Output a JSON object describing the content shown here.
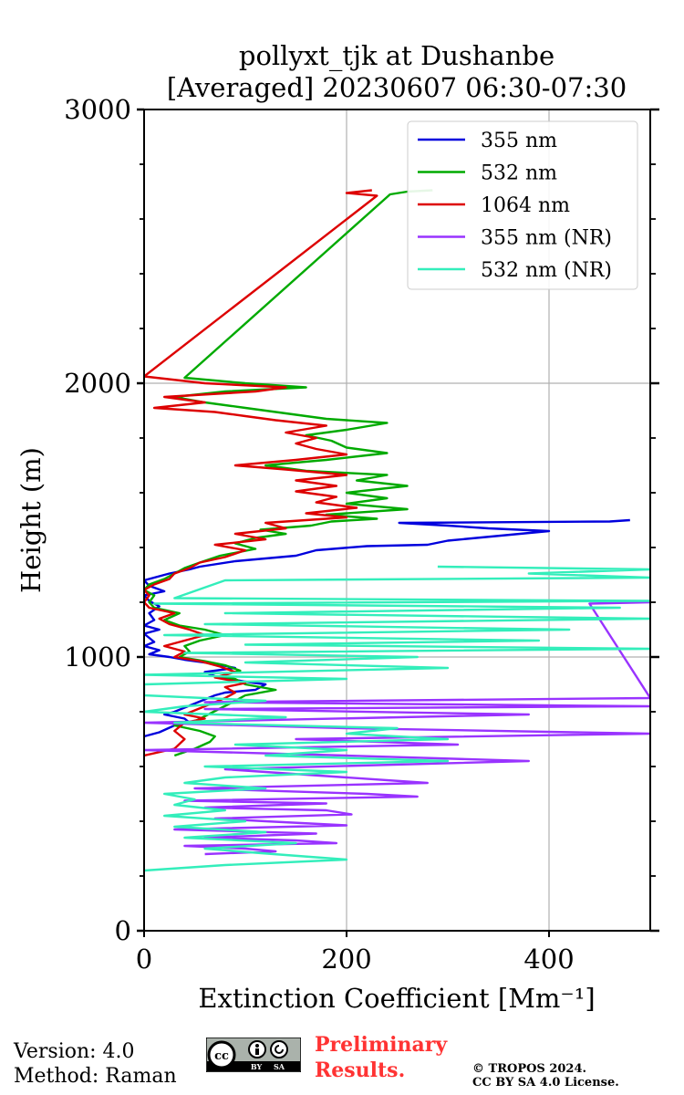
{
  "chart_data": {
    "type": "line",
    "title": [
      "pollyxt_tjk at Dushanbe",
      "[Averaged] 20230607 06:30-07:30"
    ],
    "xlabel": "Extinction Coefficient [Mm⁻¹]",
    "ylabel": "Height (m)",
    "xlim": [
      0,
      500
    ],
    "ylim": [
      0,
      3000
    ],
    "xticks": [
      0,
      200,
      400
    ],
    "yticks": [
      0,
      1000,
      2000,
      3000
    ],
    "yticks_minor_step": 200,
    "grid": true,
    "legend_position": "top-right",
    "series": [
      {
        "name": "355 nm",
        "color": "#0000dd",
        "points": [
          [
            0,
            710
          ],
          [
            15,
            725
          ],
          [
            30,
            750
          ],
          [
            45,
            760
          ],
          [
            40,
            775
          ],
          [
            20,
            790
          ],
          [
            30,
            800
          ],
          [
            70,
            860
          ],
          [
            80,
            870
          ],
          [
            110,
            880
          ],
          [
            120,
            900
          ],
          [
            100,
            910
          ],
          [
            70,
            930
          ],
          [
            60,
            945
          ],
          [
            90,
            960
          ],
          [
            70,
            975
          ],
          [
            40,
            990
          ],
          [
            25,
            1000
          ],
          [
            5,
            1010
          ],
          [
            15,
            1025
          ],
          [
            0,
            1040
          ],
          [
            10,
            1055
          ],
          [
            5,
            1070
          ],
          [
            0,
            1085
          ],
          [
            15,
            1100
          ],
          [
            0,
            1115
          ],
          [
            10,
            1135
          ],
          [
            5,
            1160
          ],
          [
            15,
            1185
          ],
          [
            5,
            1205
          ],
          [
            0,
            1225
          ],
          [
            20,
            1240
          ],
          [
            5,
            1260
          ],
          [
            0,
            1280
          ],
          [
            25,
            1305
          ],
          [
            45,
            1320
          ],
          [
            55,
            1330
          ],
          [
            90,
            1350
          ],
          [
            150,
            1370
          ],
          [
            170,
            1390
          ],
          [
            220,
            1405
          ],
          [
            280,
            1410
          ],
          [
            300,
            1425
          ],
          [
            400,
            1460
          ],
          [
            340,
            1470
          ],
          [
            300,
            1480
          ],
          [
            252,
            1490
          ],
          [
            460,
            1495
          ],
          [
            480,
            1500
          ]
        ]
      },
      {
        "name": "532 nm",
        "color": "#00aa00",
        "points": [
          [
            30,
            640
          ],
          [
            50,
            665
          ],
          [
            65,
            690
          ],
          [
            70,
            710
          ],
          [
            55,
            730
          ],
          [
            30,
            750
          ],
          [
            50,
            765
          ],
          [
            90,
            840
          ],
          [
            100,
            860
          ],
          [
            130,
            880
          ],
          [
            100,
            900
          ],
          [
            90,
            920
          ],
          [
            75,
            930
          ],
          [
            95,
            950
          ],
          [
            80,
            970
          ],
          [
            60,
            985
          ],
          [
            35,
            1000
          ],
          [
            45,
            1020
          ],
          [
            40,
            1040
          ],
          [
            55,
            1060
          ],
          [
            80,
            1080
          ],
          [
            60,
            1100
          ],
          [
            35,
            1115
          ],
          [
            20,
            1135
          ],
          [
            35,
            1160
          ],
          [
            10,
            1180
          ],
          [
            5,
            1200
          ],
          [
            10,
            1225
          ],
          [
            0,
            1245
          ],
          [
            5,
            1265
          ],
          [
            20,
            1285
          ],
          [
            30,
            1305
          ],
          [
            40,
            1325
          ],
          [
            55,
            1345
          ],
          [
            75,
            1370
          ],
          [
            110,
            1395
          ],
          [
            90,
            1415
          ],
          [
            110,
            1435
          ],
          [
            140,
            1450
          ],
          [
            115,
            1465
          ],
          [
            165,
            1480
          ],
          [
            185,
            1495
          ],
          [
            230,
            1505
          ],
          [
            180,
            1520
          ],
          [
            260,
            1540
          ],
          [
            200,
            1560
          ],
          [
            240,
            1580
          ],
          [
            200,
            1600
          ],
          [
            260,
            1625
          ],
          [
            210,
            1645
          ],
          [
            240,
            1665
          ],
          [
            160,
            1680
          ],
          [
            120,
            1700
          ],
          [
            180,
            1720
          ],
          [
            240,
            1745
          ],
          [
            200,
            1765
          ],
          [
            185,
            1790
          ],
          [
            160,
            1810
          ],
          [
            200,
            1830
          ],
          [
            240,
            1855
          ],
          [
            180,
            1870
          ],
          [
            140,
            1890
          ],
          [
            100,
            1910
          ],
          [
            60,
            1930
          ],
          [
            30,
            1950
          ],
          [
            80,
            1970
          ],
          [
            160,
            1985
          ],
          [
            100,
            2000
          ],
          [
            40,
            2020
          ],
          [
            243,
            2690
          ],
          [
            260,
            2700
          ],
          [
            285,
            2705
          ]
        ]
      },
      {
        "name": "1064 nm",
        "color": "#dd0000",
        "points": [
          [
            0,
            640
          ],
          [
            30,
            665
          ],
          [
            40,
            700
          ],
          [
            30,
            730
          ],
          [
            40,
            760
          ],
          [
            60,
            775
          ],
          [
            40,
            790
          ],
          [
            80,
            850
          ],
          [
            90,
            870
          ],
          [
            80,
            890
          ],
          [
            100,
            905
          ],
          [
            70,
            925
          ],
          [
            90,
            945
          ],
          [
            75,
            965
          ],
          [
            55,
            985
          ],
          [
            30,
            1000
          ],
          [
            40,
            1020
          ],
          [
            20,
            1040
          ],
          [
            40,
            1060
          ],
          [
            60,
            1080
          ],
          [
            45,
            1100
          ],
          [
            25,
            1120
          ],
          [
            15,
            1140
          ],
          [
            30,
            1160
          ],
          [
            5,
            1180
          ],
          [
            0,
            1200
          ],
          [
            5,
            1225
          ],
          [
            0,
            1245
          ],
          [
            10,
            1265
          ],
          [
            25,
            1285
          ],
          [
            30,
            1305
          ],
          [
            45,
            1325
          ],
          [
            55,
            1345
          ],
          [
            80,
            1365
          ],
          [
            100,
            1390
          ],
          [
            70,
            1410
          ],
          [
            120,
            1430
          ],
          [
            90,
            1450
          ],
          [
            140,
            1470
          ],
          [
            120,
            1490
          ],
          [
            200,
            1510
          ],
          [
            160,
            1525
          ],
          [
            210,
            1545
          ],
          [
            170,
            1565
          ],
          [
            190,
            1585
          ],
          [
            150,
            1605
          ],
          [
            190,
            1625
          ],
          [
            150,
            1645
          ],
          [
            200,
            1665
          ],
          [
            140,
            1685
          ],
          [
            90,
            1700
          ],
          [
            150,
            1720
          ],
          [
            200,
            1740
          ],
          [
            170,
            1760
          ],
          [
            150,
            1780
          ],
          [
            170,
            1800
          ],
          [
            140,
            1820
          ],
          [
            180,
            1845
          ],
          [
            130,
            1865
          ],
          [
            100,
            1880
          ],
          [
            70,
            1895
          ],
          [
            10,
            1910
          ],
          [
            60,
            1930
          ],
          [
            20,
            1950
          ],
          [
            110,
            1970
          ],
          [
            140,
            1985
          ],
          [
            60,
            2000
          ],
          [
            0,
            2025
          ],
          [
            230,
            2685
          ],
          [
            200,
            2695
          ],
          [
            225,
            2705
          ]
        ]
      },
      {
        "name": "355 nm (NR)",
        "color": "#9933ff",
        "points": [
          [
            60,
            280
          ],
          [
            130,
            290
          ],
          [
            100,
            300
          ],
          [
            40,
            310
          ],
          [
            190,
            320
          ],
          [
            150,
            330
          ],
          [
            60,
            340
          ],
          [
            170,
            355
          ],
          [
            30,
            370
          ],
          [
            200,
            385
          ],
          [
            120,
            400
          ],
          [
            70,
            410
          ],
          [
            205,
            425
          ],
          [
            180,
            440
          ],
          [
            60,
            450
          ],
          [
            180,
            465
          ],
          [
            40,
            475
          ],
          [
            270,
            490
          ],
          [
            220,
            500
          ],
          [
            50,
            520
          ],
          [
            280,
            540
          ],
          [
            200,
            560
          ],
          [
            80,
            590
          ],
          [
            380,
            620
          ],
          [
            200,
            640
          ],
          [
            0,
            660
          ],
          [
            310,
            680
          ],
          [
            150,
            700
          ],
          [
            500,
            720
          ],
          [
            200,
            740
          ],
          [
            0,
            760
          ],
          [
            380,
            790
          ],
          [
            60,
            810
          ],
          [
            500,
            820
          ],
          [
            60,
            835
          ],
          [
            500,
            850
          ],
          [
            440,
            1195
          ],
          [
            500,
            1200
          ]
        ]
      },
      {
        "name": "532 nm (NR)",
        "color": "#33eebb",
        "points": [
          [
            0,
            220
          ],
          [
            80,
            240
          ],
          [
            200,
            260
          ],
          [
            110,
            285
          ],
          [
            60,
            300
          ],
          [
            150,
            320
          ],
          [
            40,
            340
          ],
          [
            120,
            360
          ],
          [
            30,
            380
          ],
          [
            100,
            400
          ],
          [
            20,
            420
          ],
          [
            80,
            440
          ],
          [
            30,
            460
          ],
          [
            50,
            480
          ],
          [
            20,
            500
          ],
          [
            120,
            520
          ],
          [
            40,
            540
          ],
          [
            80,
            560
          ],
          [
            200,
            580
          ],
          [
            60,
            600
          ],
          [
            300,
            620
          ],
          [
            120,
            640
          ],
          [
            200,
            660
          ],
          [
            90,
            680
          ],
          [
            300,
            700
          ],
          [
            200,
            720
          ],
          [
            250,
            740
          ],
          [
            30,
            760
          ],
          [
            140,
            780
          ],
          [
            0,
            800
          ],
          [
            40,
            820
          ],
          [
            120,
            840
          ],
          [
            0,
            860
          ],
          [
            0,
            900
          ],
          [
            200,
            920
          ],
          [
            0,
            935
          ],
          [
            300,
            960
          ],
          [
            100,
            980
          ],
          [
            270,
            1000
          ],
          [
            40,
            1015
          ],
          [
            500,
            1030
          ],
          [
            100,
            1045
          ],
          [
            390,
            1060
          ],
          [
            20,
            1080
          ],
          [
            420,
            1100
          ],
          [
            60,
            1120
          ],
          [
            500,
            1140
          ],
          [
            80,
            1160
          ],
          [
            470,
            1180
          ],
          [
            10,
            1195
          ],
          [
            500,
            1205
          ],
          [
            30,
            1215
          ],
          [
            80,
            1280
          ],
          [
            500,
            1290
          ],
          [
            380,
            1305
          ],
          [
            500,
            1320
          ],
          [
            290,
            1330
          ]
        ]
      }
    ]
  },
  "footer": {
    "version": "Version: 4.0",
    "method": "Method: Raman",
    "preliminary_line1": "Preliminary",
    "preliminary_line2": "Results.",
    "copyright_line1": "© TROPOS 2024.",
    "copyright_line2": "CC BY SA 4.0 License.",
    "license_badge": [
      "BY",
      "SA"
    ]
  }
}
